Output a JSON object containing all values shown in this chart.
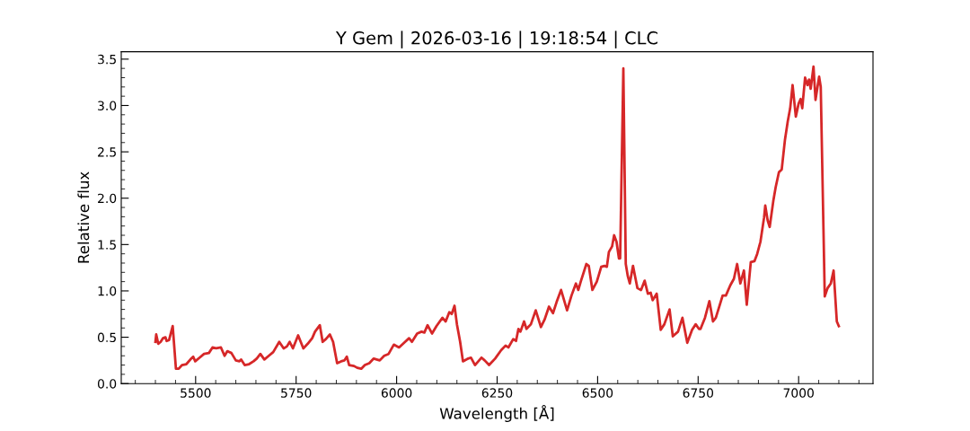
{
  "chart_data": {
    "type": "line",
    "title": "Y Gem | 2026-03-16 | 19:18:54 | CLC",
    "xlabel": "Wavelength [Å]",
    "ylabel": "Relative flux",
    "x": [
      5400,
      5402,
      5407,
      5413,
      5419,
      5425,
      5428,
      5434,
      5443,
      5451,
      5458,
      5466,
      5477,
      5487,
      5494,
      5499,
      5510,
      5521,
      5533,
      5542,
      5551,
      5563,
      5572,
      5579,
      5589,
      5600,
      5609,
      5613,
      5622,
      5633,
      5644,
      5652,
      5661,
      5671,
      5682,
      5693,
      5708,
      5719,
      5727,
      5734,
      5742,
      5755,
      5768,
      5779,
      5790,
      5797,
      5809,
      5816,
      5824,
      5834,
      5842,
      5852,
      5862,
      5870,
      5876,
      5882,
      5894,
      5902,
      5912,
      5921,
      5932,
      5943,
      5958,
      5969,
      5980,
      5993,
      6006,
      6021,
      6031,
      6038,
      6051,
      6062,
      6069,
      6077,
      6088,
      6099,
      6114,
      6122,
      6131,
      6137,
      6144,
      6150,
      6158,
      6165,
      6178,
      6185,
      6195,
      6211,
      6219,
      6230,
      6245,
      6260,
      6271,
      6278,
      6290,
      6297,
      6303,
      6308,
      6317,
      6323,
      6334,
      6346,
      6359,
      6368,
      6379,
      6389,
      6398,
      6409,
      6424,
      6435,
      6446,
      6452,
      6458,
      6472,
      6478,
      6487,
      6498,
      6509,
      6517,
      6523,
      6528,
      6536,
      6541,
      6547,
      6553,
      6556,
      6564,
      6570,
      6575,
      6580,
      6588,
      6593,
      6599,
      6608,
      6617,
      6625,
      6632,
      6637,
      6647,
      6657,
      6666,
      6679,
      6687,
      6700,
      6711,
      6723,
      6735,
      6744,
      6752,
      6756,
      6767,
      6778,
      6787,
      6794,
      6804,
      6811,
      6819,
      6830,
      6839,
      6847,
      6855,
      6864,
      6871,
      6881,
      6890,
      6897,
      6905,
      6914,
      6917,
      6923,
      6928,
      6937,
      6943,
      6951,
      6958,
      6966,
      6973,
      6979,
      6985,
      6993,
      7000,
      7005,
      7009,
      7016,
      7022,
      7026,
      7030,
      7037,
      7042,
      7048,
      7051,
      7055,
      7065,
      7072,
      7080,
      7087,
      7095,
      7100
    ],
    "values": [
      0.45,
      0.53,
      0.43,
      0.45,
      0.49,
      0.5,
      0.46,
      0.47,
      0.62,
      0.16,
      0.16,
      0.2,
      0.21,
      0.26,
      0.29,
      0.24,
      0.28,
      0.32,
      0.33,
      0.39,
      0.38,
      0.39,
      0.3,
      0.35,
      0.33,
      0.25,
      0.24,
      0.26,
      0.2,
      0.21,
      0.24,
      0.27,
      0.32,
      0.26,
      0.3,
      0.34,
      0.45,
      0.38,
      0.4,
      0.45,
      0.38,
      0.52,
      0.38,
      0.43,
      0.49,
      0.56,
      0.63,
      0.45,
      0.48,
      0.53,
      0.45,
      0.22,
      0.24,
      0.25,
      0.29,
      0.2,
      0.19,
      0.17,
      0.16,
      0.2,
      0.22,
      0.27,
      0.25,
      0.3,
      0.32,
      0.42,
      0.39,
      0.45,
      0.49,
      0.45,
      0.54,
      0.56,
      0.55,
      0.63,
      0.54,
      0.62,
      0.71,
      0.67,
      0.77,
      0.75,
      0.84,
      0.64,
      0.45,
      0.24,
      0.27,
      0.28,
      0.2,
      0.28,
      0.25,
      0.2,
      0.27,
      0.36,
      0.41,
      0.39,
      0.48,
      0.46,
      0.59,
      0.56,
      0.67,
      0.59,
      0.64,
      0.79,
      0.61,
      0.69,
      0.83,
      0.76,
      0.88,
      1.01,
      0.79,
      0.95,
      1.08,
      1.01,
      1.1,
      1.29,
      1.27,
      1.01,
      1.1,
      1.26,
      1.27,
      1.26,
      1.42,
      1.48,
      1.6,
      1.53,
      1.35,
      1.35,
      3.4,
      1.29,
      1.16,
      1.08,
      1.27,
      1.16,
      1.03,
      1.01,
      1.11,
      0.97,
      0.98,
      0.9,
      0.97,
      0.58,
      0.64,
      0.8,
      0.51,
      0.56,
      0.71,
      0.44,
      0.58,
      0.64,
      0.59,
      0.59,
      0.71,
      0.89,
      0.67,
      0.71,
      0.85,
      0.95,
      0.95,
      1.06,
      1.13,
      1.29,
      1.08,
      1.22,
      0.85,
      1.31,
      1.32,
      1.4,
      1.53,
      1.79,
      1.92,
      1.76,
      1.69,
      1.97,
      2.12,
      2.28,
      2.31,
      2.63,
      2.83,
      2.97,
      3.22,
      2.88,
      3.02,
      3.07,
      2.97,
      3.3,
      3.22,
      3.28,
      3.18,
      3.42,
      3.06,
      3.23,
      3.31,
      3.2,
      0.94,
      1.03,
      1.08,
      1.22,
      0.67,
      0.62
    ],
    "color": "#d62728",
    "line_style": "solid",
    "xlim": [
      5315,
      7185
    ],
    "ylim": [
      0,
      3.58
    ],
    "xticks": [
      5500,
      5750,
      6000,
      6250,
      6500,
      6750,
      7000
    ],
    "yticks": [
      {
        "value": 0,
        "label": "0.0"
      },
      0.5,
      {
        "value": 1,
        "label": "1.0"
      },
      1.5,
      {
        "value": 2,
        "label": "2.0"
      },
      2.5,
      {
        "value": 3,
        "label": "3.0"
      },
      3.5
    ]
  }
}
